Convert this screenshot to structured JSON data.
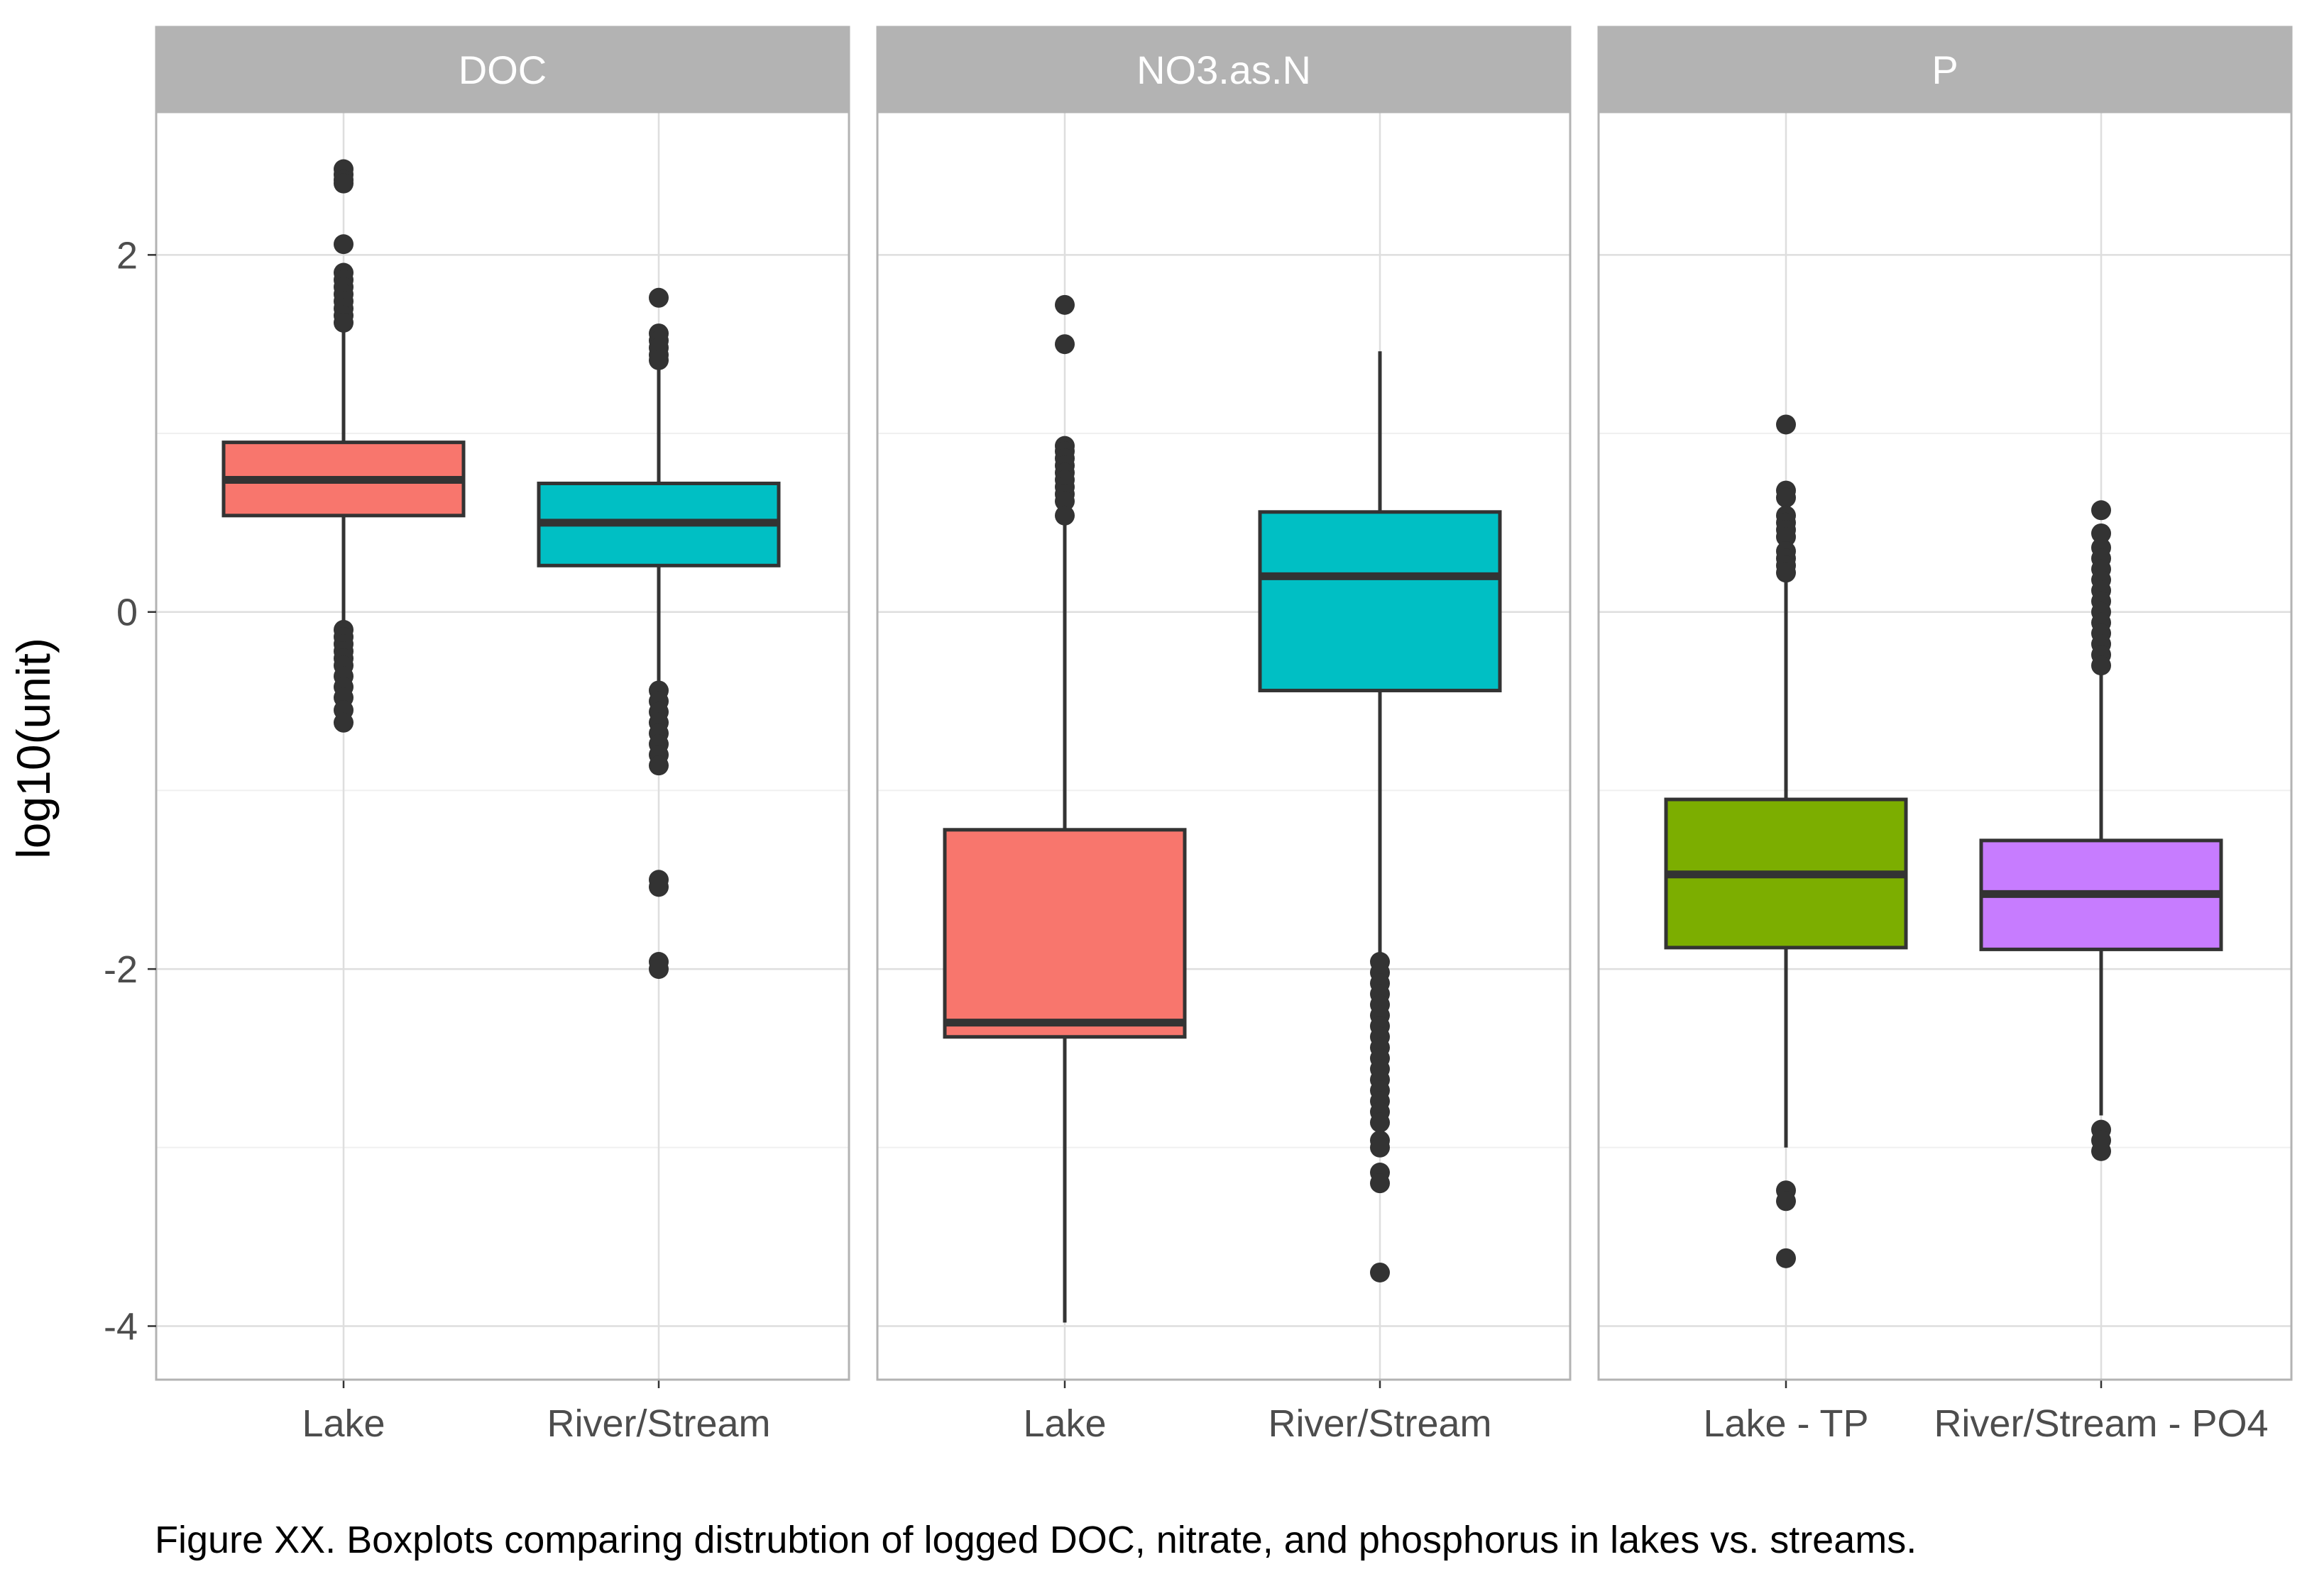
{
  "chart_data": {
    "type": "boxplot",
    "ylabel": "log10(unit)",
    "ylim": [
      -4.3,
      2.8
    ],
    "yticks": [
      {
        "value": 2,
        "label": "2"
      },
      {
        "value": 0,
        "label": "0"
      },
      {
        "value": -2,
        "label": "-2"
      },
      {
        "value": -4,
        "label": "-4"
      }
    ],
    "minor_yticks": [
      3,
      1,
      -1,
      -3
    ],
    "grid": true,
    "legend": "none",
    "facets": [
      {
        "name": "DOC",
        "boxes": [
          {
            "label": "Lake",
            "color": "#F8766D",
            "q1": 0.54,
            "median": 0.74,
            "q3": 0.95,
            "whisker_low": -0.08,
            "whisker_high": 1.58,
            "outliers": [
              2.48,
              2.45,
              2.42,
              2.4,
              2.06,
              1.9,
              1.86,
              1.82,
              1.78,
              1.74,
              1.7,
              1.66,
              1.62,
              -0.1,
              -0.14,
              -0.18,
              -0.22,
              -0.26,
              -0.3,
              -0.36,
              -0.42,
              -0.48,
              -0.55,
              -0.62
            ]
          },
          {
            "label": "River/Stream",
            "color": "#00BFC4",
            "q1": 0.26,
            "median": 0.5,
            "q3": 0.72,
            "whisker_low": -0.42,
            "whisker_high": 1.38,
            "outliers": [
              1.76,
              1.56,
              1.52,
              1.48,
              1.44,
              1.41,
              -0.44,
              -0.5,
              -0.56,
              -0.62,
              -0.68,
              -0.74,
              -0.8,
              -0.86,
              -1.5,
              -1.54,
              -1.96,
              -2.0
            ]
          }
        ]
      },
      {
        "name": "NO3.as.N",
        "boxes": [
          {
            "label": "Lake",
            "color": "#F8766D",
            "q1": -2.38,
            "median": -2.3,
            "q3": -1.22,
            "whisker_low": -3.98,
            "whisker_high": 0.5,
            "outliers": [
              1.72,
              1.5,
              0.93,
              0.9,
              0.86,
              0.82,
              0.78,
              0.74,
              0.7,
              0.66,
              0.62,
              0.54
            ]
          },
          {
            "label": "River/Stream",
            "color": "#00BFC4",
            "q1": -0.44,
            "median": 0.2,
            "q3": 0.56,
            "whisker_low": -1.96,
            "whisker_high": 1.46,
            "outliers": [
              -1.96,
              -2.02,
              -2.08,
              -2.14,
              -2.2,
              -2.26,
              -2.32,
              -2.38,
              -2.44,
              -2.5,
              -2.56,
              -2.62,
              -2.68,
              -2.74,
              -2.8,
              -2.86,
              -2.96,
              -3.0,
              -3.14,
              -3.2,
              -3.7
            ]
          }
        ]
      },
      {
        "name": "P",
        "boxes": [
          {
            "label": "Lake - TP",
            "color": "#7CAE00",
            "q1": -1.88,
            "median": -1.47,
            "q3": -1.05,
            "whisker_low": -3.0,
            "whisker_high": 0.2,
            "outliers": [
              1.05,
              0.68,
              0.64,
              0.54,
              0.5,
              0.46,
              0.42,
              0.34,
              0.3,
              0.26,
              0.22,
              -3.24,
              -3.3,
              -3.62
            ]
          },
          {
            "label": "River/Stream - PO4",
            "color": "#C77CFF",
            "q1": -1.89,
            "median": -1.58,
            "q3": -1.28,
            "whisker_low": -2.82,
            "whisker_high": -0.35,
            "outliers": [
              0.57,
              0.44,
              0.36,
              0.3,
              0.24,
              0.18,
              0.12,
              0.06,
              0.0,
              -0.06,
              -0.12,
              -0.18,
              -0.24,
              -0.3,
              -2.9,
              -2.96,
              -3.02
            ]
          }
        ]
      }
    ]
  },
  "caption": "Figure XX. Boxplots comparing distrubtion of logged DOC, nitrate, and phosphorus in lakes vs. streams."
}
